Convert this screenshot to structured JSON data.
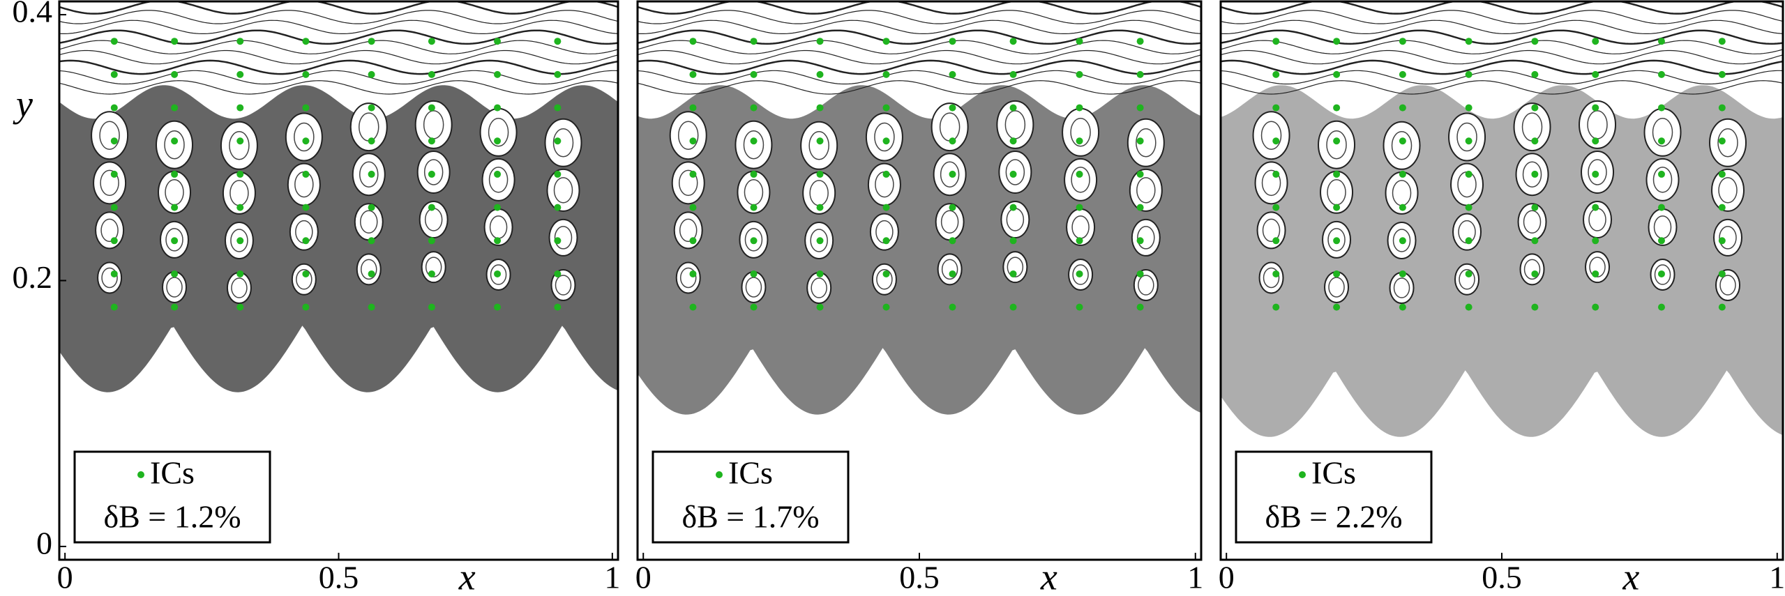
{
  "chart_data": [
    {
      "type": "scatter",
      "xlabel": "x",
      "ylabel": "y",
      "annotation": "δB = 1.2%",
      "legend": "lower left",
      "xlim": [
        -0.0104,
        1.0104
      ],
      "ylim": [
        -0.01,
        0.41
      ],
      "xticks": [
        0,
        0.5,
        1
      ],
      "yticks": [
        0,
        0.2,
        0.4
      ],
      "series": [
        {
          "name": "ICs",
          "color": "#1fb41f",
          "x": [
            0.09,
            0.2,
            0.32,
            0.44,
            0.56,
            0.67,
            0.79,
            0.9,
            0.09,
            0.2,
            0.32,
            0.44,
            0.56,
            0.67,
            0.79,
            0.9,
            0.09,
            0.2,
            0.32,
            0.44,
            0.56,
            0.67,
            0.79,
            0.9,
            0.09,
            0.2,
            0.32,
            0.44,
            0.56,
            0.67,
            0.79,
            0.9,
            0.09,
            0.2,
            0.32,
            0.44,
            0.56,
            0.67,
            0.79,
            0.9,
            0.09,
            0.2,
            0.32,
            0.44,
            0.56,
            0.67,
            0.79,
            0.9,
            0.09,
            0.2,
            0.32,
            0.44,
            0.56,
            0.67,
            0.79,
            0.9,
            0.09,
            0.2,
            0.32,
            0.44,
            0.56,
            0.67,
            0.79,
            0.9,
            0.09,
            0.2,
            0.32,
            0.44,
            0.56,
            0.67,
            0.79,
            0.9
          ],
          "values": [
            0.38,
            0.38,
            0.38,
            0.38,
            0.38,
            0.38,
            0.38,
            0.38,
            0.355,
            0.355,
            0.355,
            0.355,
            0.355,
            0.355,
            0.355,
            0.355,
            0.33,
            0.33,
            0.33,
            0.33,
            0.33,
            0.33,
            0.33,
            0.33,
            0.305,
            0.305,
            0.305,
            0.305,
            0.305,
            0.305,
            0.305,
            0.305,
            0.28,
            0.28,
            0.28,
            0.28,
            0.28,
            0.28,
            0.28,
            0.28,
            0.255,
            0.255,
            0.255,
            0.255,
            0.255,
            0.255,
            0.255,
            0.255,
            0.23,
            0.23,
            0.23,
            0.23,
            0.23,
            0.23,
            0.23,
            0.23,
            0.205,
            0.205,
            0.205,
            0.205,
            0.205,
            0.205,
            0.205,
            0.205,
            0.18,
            0.18,
            0.18,
            0.18,
            0.18,
            0.18,
            0.18,
            0.18
          ]
        }
      ]
    },
    {
      "type": "scatter",
      "xlabel": "x",
      "annotation": "δB = 1.7%",
      "legend": "lower left",
      "xlim": [
        -0.0104,
        1.0104
      ],
      "ylim": [
        -0.01,
        0.41
      ],
      "xticks": [
        0,
        0.5,
        1
      ],
      "series": [
        {
          "name": "ICs",
          "color": "#1fb41f",
          "x": [
            0.09,
            0.2,
            0.32,
            0.44,
            0.56,
            0.67,
            0.79,
            0.9,
            0.09,
            0.2,
            0.32,
            0.44,
            0.56,
            0.67,
            0.79,
            0.9,
            0.09,
            0.2,
            0.32,
            0.44,
            0.56,
            0.67,
            0.79,
            0.9,
            0.09,
            0.2,
            0.32,
            0.44,
            0.56,
            0.67,
            0.79,
            0.9,
            0.09,
            0.2,
            0.32,
            0.44,
            0.56,
            0.67,
            0.79,
            0.9,
            0.09,
            0.2,
            0.32,
            0.44,
            0.56,
            0.67,
            0.79,
            0.9,
            0.09,
            0.2,
            0.32,
            0.44,
            0.56,
            0.67,
            0.79,
            0.9,
            0.09,
            0.2,
            0.32,
            0.44,
            0.56,
            0.67,
            0.79,
            0.9,
            0.09,
            0.2,
            0.32,
            0.44,
            0.56,
            0.67,
            0.79,
            0.9
          ],
          "values": [
            0.38,
            0.38,
            0.38,
            0.38,
            0.38,
            0.38,
            0.38,
            0.38,
            0.355,
            0.355,
            0.355,
            0.355,
            0.355,
            0.355,
            0.355,
            0.355,
            0.33,
            0.33,
            0.33,
            0.33,
            0.33,
            0.33,
            0.33,
            0.33,
            0.305,
            0.305,
            0.305,
            0.305,
            0.305,
            0.305,
            0.305,
            0.305,
            0.28,
            0.28,
            0.28,
            0.28,
            0.28,
            0.28,
            0.28,
            0.28,
            0.255,
            0.255,
            0.255,
            0.255,
            0.255,
            0.255,
            0.255,
            0.255,
            0.23,
            0.23,
            0.23,
            0.23,
            0.23,
            0.23,
            0.23,
            0.23,
            0.205,
            0.205,
            0.205,
            0.205,
            0.205,
            0.205,
            0.205,
            0.205,
            0.18,
            0.18,
            0.18,
            0.18,
            0.18,
            0.18,
            0.18,
            0.18
          ]
        }
      ]
    },
    {
      "type": "scatter",
      "xlabel": "x",
      "annotation": "δB = 2.2%",
      "legend": "lower left",
      "xlim": [
        -0.0104,
        1.0104
      ],
      "ylim": [
        -0.01,
        0.41
      ],
      "xticks": [
        0,
        0.5,
        1
      ],
      "series": [
        {
          "name": "ICs",
          "color": "#1fb41f",
          "x": [
            0.09,
            0.2,
            0.32,
            0.44,
            0.56,
            0.67,
            0.79,
            0.9,
            0.09,
            0.2,
            0.32,
            0.44,
            0.56,
            0.67,
            0.79,
            0.9,
            0.09,
            0.2,
            0.32,
            0.44,
            0.56,
            0.67,
            0.79,
            0.9,
            0.09,
            0.2,
            0.32,
            0.44,
            0.56,
            0.67,
            0.79,
            0.9,
            0.09,
            0.2,
            0.32,
            0.44,
            0.56,
            0.67,
            0.79,
            0.9,
            0.09,
            0.2,
            0.32,
            0.44,
            0.56,
            0.67,
            0.79,
            0.9,
            0.09,
            0.2,
            0.32,
            0.44,
            0.56,
            0.67,
            0.79,
            0.9,
            0.09,
            0.2,
            0.32,
            0.44,
            0.56,
            0.67,
            0.79,
            0.9,
            0.09,
            0.2,
            0.32,
            0.44,
            0.56,
            0.67,
            0.79,
            0.9
          ],
          "values": [
            0.38,
            0.38,
            0.38,
            0.38,
            0.38,
            0.38,
            0.38,
            0.38,
            0.355,
            0.355,
            0.355,
            0.355,
            0.355,
            0.355,
            0.355,
            0.355,
            0.33,
            0.33,
            0.33,
            0.33,
            0.33,
            0.33,
            0.33,
            0.33,
            0.305,
            0.305,
            0.305,
            0.305,
            0.305,
            0.305,
            0.305,
            0.305,
            0.28,
            0.28,
            0.28,
            0.28,
            0.28,
            0.28,
            0.28,
            0.28,
            0.255,
            0.255,
            0.255,
            0.255,
            0.255,
            0.255,
            0.255,
            0.255,
            0.23,
            0.23,
            0.23,
            0.23,
            0.23,
            0.23,
            0.23,
            0.23,
            0.205,
            0.205,
            0.205,
            0.205,
            0.205,
            0.205,
            0.205,
            0.205,
            0.18,
            0.18,
            0.18,
            0.18,
            0.18,
            0.18,
            0.18,
            0.18
          ]
        }
      ]
    }
  ]
}
